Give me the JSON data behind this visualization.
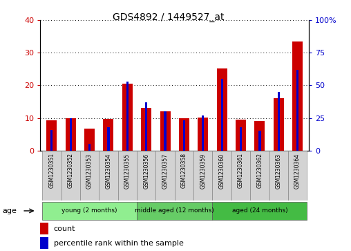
{
  "title": "GDS4892 / 1449527_at",
  "samples": [
    "GSM1230351",
    "GSM1230352",
    "GSM1230353",
    "GSM1230354",
    "GSM1230355",
    "GSM1230356",
    "GSM1230357",
    "GSM1230358",
    "GSM1230359",
    "GSM1230360",
    "GSM1230361",
    "GSM1230362",
    "GSM1230363",
    "GSM1230364"
  ],
  "count_values": [
    9.2,
    10.0,
    6.8,
    9.8,
    20.5,
    13.2,
    12.0,
    10.0,
    10.2,
    25.2,
    9.5,
    9.0,
    16.0,
    33.5
  ],
  "percentile_values": [
    16,
    25,
    5,
    18,
    53,
    37,
    30,
    23,
    27,
    55,
    18,
    15,
    45,
    62
  ],
  "count_color": "#cc0000",
  "percentile_color": "#0000cc",
  "ylim_left": [
    0,
    40
  ],
  "ylim_right": [
    0,
    100
  ],
  "yticks_left": [
    0,
    10,
    20,
    30,
    40
  ],
  "yticks_right": [
    0,
    25,
    50,
    75,
    100
  ],
  "group_data": [
    [
      0,
      4,
      "young (2 months)",
      "#90ee90"
    ],
    [
      5,
      8,
      "middle aged (12 months)",
      "#66cc66"
    ],
    [
      9,
      13,
      "aged (24 months)",
      "#44bb44"
    ]
  ],
  "age_label": "age",
  "legend_count": "count",
  "legend_percentile": "percentile rank within the sample",
  "bg_color": "#ffffff",
  "label_bg": "#d3d3d3"
}
